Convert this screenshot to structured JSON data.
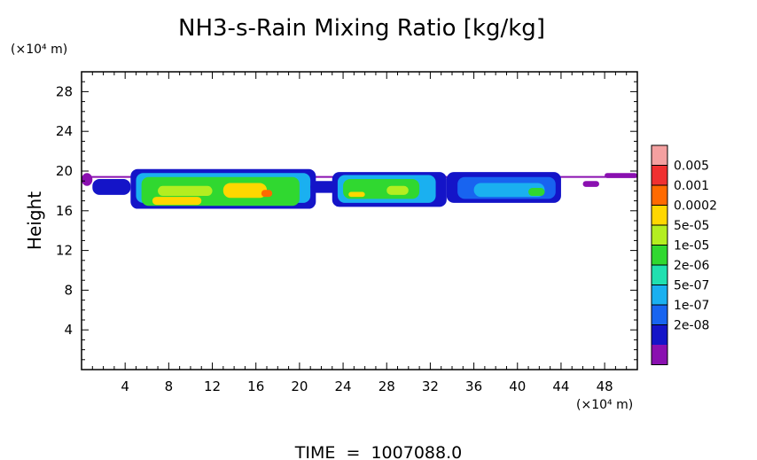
{
  "chart_data": {
    "type": "heatmap",
    "title": "NH3-s-Rain Mixing Ratio [kg/kg]",
    "ylabel": "Height",
    "y_unit": "(×10⁴ m)",
    "x_unit": "(×10⁴ m)",
    "footer": "TIME  =  1007088.0",
    "xlim": [
      0,
      51
    ],
    "ylim": [
      0,
      30
    ],
    "x_ticks": [
      4,
      8,
      12,
      16,
      20,
      24,
      28,
      32,
      36,
      40,
      44,
      48
    ],
    "y_ticks": [
      4,
      8,
      12,
      16,
      20,
      24,
      28
    ],
    "grid": false,
    "legend_position": "right",
    "colorbar": {
      "labels": [
        "0.005",
        "0.001",
        "0.0002",
        "5e-05",
        "1e-05",
        "2e-06",
        "5e-07",
        "1e-07",
        "2e-08"
      ],
      "colors": [
        "#f4a0a0",
        "#f03030",
        "#ff6a00",
        "#ffd700",
        "#b4ee20",
        "#30d830",
        "#20e0b0",
        "#1ab0f0",
        "#1864f0",
        "#1414c8",
        "#8a10b0"
      ]
    },
    "cells": [
      {
        "x": [
          0,
          51
        ],
        "y": [
          19.5,
          19.5
        ],
        "level": 10
      },
      {
        "x": [
          0,
          1
        ],
        "y": [
          18.5,
          19.8
        ],
        "level": 10
      },
      {
        "x": [
          1,
          4.5
        ],
        "y": [
          17.6,
          19.2
        ],
        "level": 9
      },
      {
        "x": [
          4.5,
          21.5
        ],
        "y": [
          16.2,
          20.2
        ],
        "level": 9
      },
      {
        "x": [
          5,
          21
        ],
        "y": [
          16.8,
          19.8
        ],
        "level": 7
      },
      {
        "x": [
          5.5,
          20
        ],
        "y": [
          16.5,
          19.4
        ],
        "level": 5
      },
      {
        "x": [
          6.5,
          11
        ],
        "y": [
          16.6,
          17.4
        ],
        "level": 3
      },
      {
        "x": [
          7,
          12
        ],
        "y": [
          17.5,
          18.5
        ],
        "level": 4
      },
      {
        "x": [
          13,
          17
        ],
        "y": [
          17.3,
          18.8
        ],
        "level": 3
      },
      {
        "x": [
          16.5,
          17.5
        ],
        "y": [
          17.4,
          18.1
        ],
        "level": 2
      },
      {
        "x": [
          21,
          24
        ],
        "y": [
          17.8,
          19.0
        ],
        "level": 9
      },
      {
        "x": [
          23,
          33.5
        ],
        "y": [
          16.4,
          19.9
        ],
        "level": 9
      },
      {
        "x": [
          23.5,
          32.5
        ],
        "y": [
          16.8,
          19.6
        ],
        "level": 7
      },
      {
        "x": [
          24,
          31
        ],
        "y": [
          17.2,
          19.2
        ],
        "level": 5
      },
      {
        "x": [
          24.5,
          26
        ],
        "y": [
          17.4,
          17.9
        ],
        "level": 3
      },
      {
        "x": [
          28,
          30
        ],
        "y": [
          17.6,
          18.5
        ],
        "level": 4
      },
      {
        "x": [
          33.5,
          44
        ],
        "y": [
          16.8,
          19.9
        ],
        "level": 9
      },
      {
        "x": [
          34.5,
          43.5
        ],
        "y": [
          17.2,
          19.4
        ],
        "level": 8
      },
      {
        "x": [
          36,
          42.5
        ],
        "y": [
          17.4,
          18.8
        ],
        "level": 7
      },
      {
        "x": [
          41,
          42.5
        ],
        "y": [
          17.5,
          18.3
        ],
        "level": 5
      },
      {
        "x": [
          46,
          47.5
        ],
        "y": [
          18.4,
          19.0
        ],
        "level": 10
      },
      {
        "x": [
          48,
          51
        ],
        "y": [
          19.3,
          19.8
        ],
        "level": 10
      }
    ]
  }
}
